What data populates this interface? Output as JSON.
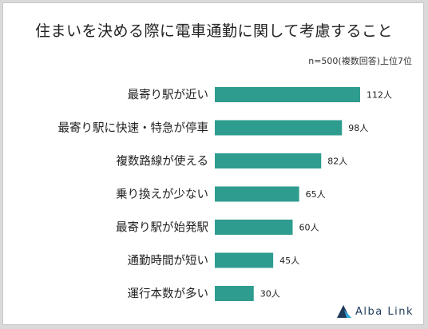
{
  "title": "住まいを決める際に電車通勤に関して考慮すること",
  "note": "n=500(複数回答)上位7位",
  "logo_text": "Alba Link",
  "colors": {
    "bar": "#2e9c8e",
    "text": "#222222",
    "logo_dark": "#1d3a5a",
    "logo_accent": "#2aa4d8"
  },
  "chart_data": {
    "type": "bar",
    "orientation": "horizontal",
    "categories": [
      "最寄り駅が近い",
      "最寄り駅に快速・特急が停車",
      "複数路線が使える",
      "乗り換えが少ない",
      "最寄り駅が始発駅",
      "通勤時間が短い",
      "運行本数が多い"
    ],
    "values": [
      112,
      98,
      82,
      65,
      60,
      45,
      30
    ],
    "value_labels": [
      "112人",
      "98人",
      "82人",
      "65人",
      "60人",
      "45人",
      "30人"
    ],
    "unit": "人",
    "xlim": [
      0,
      125
    ],
    "grid": false,
    "legend": "none"
  }
}
